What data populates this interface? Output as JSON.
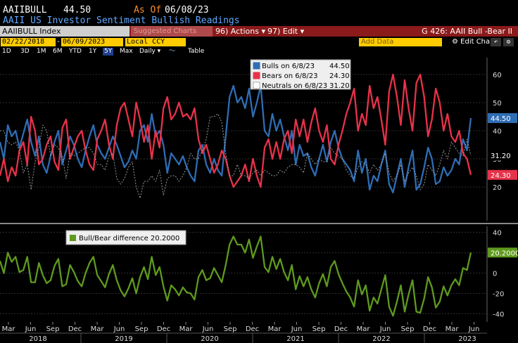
{
  "header": {
    "ticker": "AAIIBULL",
    "last_value": "44.50",
    "as_of_label": "As Of",
    "as_of_date": "06/08/23",
    "description": "AAII US Investor Sentiment Bullish Readings"
  },
  "toolbar": {
    "security": "AAIIBULL Index",
    "suggested": "Suggested Charts",
    "actions": "96) Actions ▾",
    "edit": "97) Edit ▾",
    "function": "G 426: AAII Bull -Bear II"
  },
  "controls": {
    "start_date": "02/22/2018",
    "end_date": "06/09/2023",
    "currency": "Local CCY",
    "add_data": "Add Data",
    "edit_chart": "Edit Chart",
    "periods": [
      "1D",
      "3D",
      "1M",
      "6M",
      "YTD",
      "1Y",
      "5Y",
      "Max"
    ],
    "selected_period": "5Y",
    "frequency": "Daily ▾",
    "table": "Table"
  },
  "chart_data": [
    {
      "type": "line",
      "panel": "upper",
      "ylim": [
        8,
        66
      ],
      "yticks": [
        20,
        30,
        40,
        50,
        60
      ],
      "legend_position": "top-center",
      "series": [
        {
          "name": "Bulls",
          "legend_label": "Bulls on 6/8/23",
          "last_label": "44.50",
          "last": 44.5,
          "color": "#2f6db5",
          "values": [
            36,
            30,
            42,
            38,
            40,
            34,
            39,
            44,
            36,
            31,
            38,
            28,
            25,
            31,
            36,
            40,
            28,
            33,
            38,
            35,
            30,
            27,
            33,
            38,
            42,
            35,
            32,
            30,
            34,
            38,
            35,
            31,
            27,
            29,
            33,
            30,
            40,
            42,
            36,
            46,
            38,
            40,
            35,
            25,
            32,
            30,
            28,
            31,
            27,
            24,
            22,
            33,
            35,
            28,
            25,
            30,
            26,
            24,
            38,
            52,
            56,
            50,
            52,
            48,
            55,
            45,
            50,
            56,
            40,
            38,
            46,
            40,
            44,
            38,
            33,
            40,
            28,
            35,
            31,
            32,
            27,
            24,
            30,
            35,
            29,
            36,
            40,
            34,
            30,
            28,
            26,
            22,
            33,
            25,
            30,
            19,
            24,
            22,
            28,
            33,
            21,
            18,
            24,
            30,
            20,
            27,
            33,
            19,
            21,
            27,
            34,
            30,
            21,
            22,
            27,
            24,
            26,
            30,
            28,
            37,
            33,
            44.5
          ]
        },
        {
          "name": "Bears",
          "legend_label": "Bears on 6/8/23",
          "last_label": "24.30",
          "last": 24.3,
          "color": "#e8324a",
          "values": [
            24,
            30,
            22,
            27,
            24,
            33,
            36,
            28,
            45,
            40,
            28,
            30,
            35,
            38,
            29,
            26,
            41,
            44,
            30,
            34,
            38,
            40,
            33,
            28,
            26,
            37,
            40,
            44,
            35,
            30,
            42,
            48,
            50,
            44,
            38,
            50,
            44,
            36,
            42,
            30,
            40,
            34,
            48,
            52,
            44,
            46,
            50,
            45,
            46,
            44,
            48,
            37,
            32,
            35,
            30,
            25,
            28,
            33,
            30,
            24,
            20,
            22,
            24,
            28,
            22,
            30,
            24,
            20,
            34,
            37,
            30,
            36,
            30,
            37,
            40,
            32,
            44,
            38,
            44,
            36,
            43,
            48,
            40,
            36,
            42,
            30,
            28,
            35,
            40,
            46,
            50,
            55,
            40,
            46,
            42,
            56,
            48,
            52,
            44,
            35,
            54,
            60,
            52,
            42,
            58,
            48,
            40,
            57,
            60,
            52,
            38,
            44,
            55,
            50,
            40,
            46,
            38,
            36,
            40,
            32,
            30,
            24.3
          ]
        },
        {
          "name": "Neutrals",
          "legend_label": "Neutrals on 6/8/23",
          "last_label": "31.20",
          "last": 31.2,
          "color": "#9a9a9a",
          "values": [
            40,
            40,
            36,
            35,
            36,
            33,
            25,
            28,
            19,
            29,
            34,
            42,
            40,
            31,
            35,
            34,
            31,
            23,
            32,
            31,
            32,
            33,
            34,
            34,
            32,
            28,
            28,
            26,
            31,
            32,
            23,
            21,
            23,
            27,
            29,
            20,
            16,
            22,
            22,
            24,
            22,
            26,
            17,
            23,
            24,
            24,
            22,
            24,
            27,
            32,
            30,
            30,
            33,
            37,
            45,
            45,
            46,
            43,
            32,
            24,
            24,
            28,
            24,
            24,
            23,
            25,
            26,
            24,
            26,
            25,
            24,
            24,
            26,
            25,
            27,
            28,
            28,
            27,
            25,
            32,
            30,
            28,
            30,
            29,
            29,
            34,
            32,
            31,
            30,
            26,
            24,
            23,
            27,
            29,
            28,
            25,
            28,
            26,
            28,
            32,
            25,
            22,
            24,
            28,
            22,
            25,
            27,
            24,
            19,
            21,
            28,
            26,
            24,
            28,
            33,
            30,
            36,
            34,
            32,
            31,
            37,
            31.2
          ]
        }
      ]
    },
    {
      "type": "line",
      "panel": "lower",
      "ylim": [
        -48,
        46
      ],
      "yticks": [
        -40,
        -20,
        0,
        20,
        40
      ],
      "legend_position": "top-left",
      "series": [
        {
          "name": "Bull/Bear difference",
          "legend_label": "Bull/Bear difference 20.2000",
          "last_label": "20.2000",
          "last": 20.2,
          "color": "#5f9a1e",
          "values": [
            12,
            0,
            20,
            11,
            16,
            1,
            3,
            16,
            -9,
            -9,
            10,
            -2,
            -10,
            -7,
            7,
            14,
            -13,
            -11,
            8,
            1,
            -8,
            -13,
            0,
            10,
            16,
            -2,
            -8,
            -14,
            -1,
            8,
            -7,
            -17,
            -23,
            -15,
            -5,
            -20,
            -4,
            6,
            -6,
            16,
            -2,
            6,
            -13,
            -27,
            -12,
            -16,
            -22,
            -14,
            -19,
            -20,
            -26,
            -4,
            3,
            -7,
            -5,
            5,
            -2,
            -9,
            8,
            28,
            36,
            28,
            28,
            20,
            33,
            15,
            26,
            36,
            6,
            1,
            16,
            4,
            14,
            1,
            -7,
            8,
            -16,
            -3,
            -13,
            -4,
            -16,
            -24,
            -10,
            -1,
            -13,
            6,
            12,
            -1,
            -10,
            -18,
            -24,
            -33,
            -7,
            -21,
            -12,
            -37,
            -24,
            -30,
            -16,
            -2,
            -33,
            -42,
            -28,
            -12,
            -38,
            -21,
            -7,
            -38,
            -39,
            -25,
            -4,
            -14,
            -34,
            -28,
            -13,
            -22,
            -12,
            -6,
            -12,
            5,
            3,
            20.2
          ]
        }
      ]
    }
  ],
  "x_axis": {
    "months": [
      "Mar",
      "Jun",
      "Sep",
      "Dec",
      "Mar",
      "Jun",
      "Sep",
      "Dec",
      "Mar",
      "Jun",
      "Sep",
      "Dec",
      "Mar",
      "Jun",
      "Sep",
      "Dec",
      "Mar",
      "Jun",
      "Sep",
      "Dec",
      "Mar",
      "Jun"
    ],
    "years": [
      "2018",
      "2019",
      "2020",
      "2021",
      "2022",
      "2023"
    ]
  }
}
